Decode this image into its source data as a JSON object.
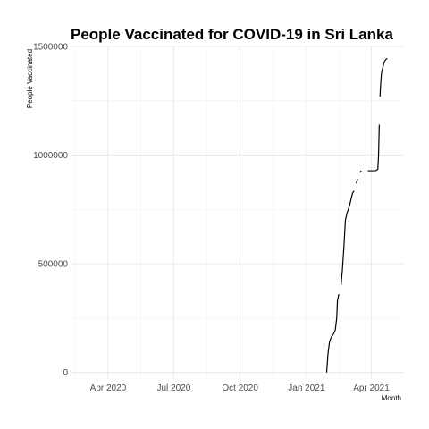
{
  "chart_data": {
    "type": "line",
    "title": "People Vaccinated for COVID-19 in Sri Lanka",
    "xlabel": "Month",
    "ylabel": "People Vaccinated",
    "xlim": [
      "2020-02-09",
      "2021-05-15"
    ],
    "ylim": [
      -30000,
      1500000
    ],
    "x_ticks": [
      {
        "date": "2020-04-01",
        "label": "Apr 2020"
      },
      {
        "date": "2020-07-01",
        "label": "Jul 2020"
      },
      {
        "date": "2020-10-01",
        "label": "Oct 2020"
      },
      {
        "date": "2021-01-01",
        "label": "Jan 2021"
      },
      {
        "date": "2021-04-01",
        "label": "Apr 2021"
      }
    ],
    "y_ticks": [
      {
        "value": 0,
        "label": "0"
      },
      {
        "value": 500000,
        "label": "500000"
      },
      {
        "value": 1000000,
        "label": "1000000"
      },
      {
        "value": 1500000,
        "label": "1500000"
      }
    ],
    "grid": true,
    "legend": "none",
    "line_color": "#000000",
    "series": [
      {
        "segments": [
          [
            {
              "x": "2021-01-29",
              "y": 0
            },
            {
              "x": "2021-01-31",
              "y": 90000
            },
            {
              "x": "2021-02-02",
              "y": 140000
            },
            {
              "x": "2021-02-04",
              "y": 160000
            },
            {
              "x": "2021-02-06",
              "y": 170000
            },
            {
              "x": "2021-02-08",
              "y": 180000
            },
            {
              "x": "2021-02-10",
              "y": 195000
            },
            {
              "x": "2021-02-12",
              "y": 250000
            },
            {
              "x": "2021-02-13",
              "y": 330000
            },
            {
              "x": "2021-02-15",
              "y": 360000
            }
          ],
          [
            {
              "x": "2021-02-18",
              "y": 400000
            },
            {
              "x": "2021-02-20",
              "y": 480000
            },
            {
              "x": "2021-02-22",
              "y": 580000
            },
            {
              "x": "2021-02-24",
              "y": 700000
            },
            {
              "x": "2021-02-26",
              "y": 730000
            },
            {
              "x": "2021-02-28",
              "y": 750000
            },
            {
              "x": "2021-03-02",
              "y": 770000
            },
            {
              "x": "2021-03-04",
              "y": 800000
            },
            {
              "x": "2021-03-06",
              "y": 825000
            },
            {
              "x": "2021-03-08",
              "y": 835000
            }
          ],
          [
            {
              "x": "2021-03-11",
              "y": 870000
            },
            {
              "x": "2021-03-13",
              "y": 890000
            }
          ],
          [
            {
              "x": "2021-03-16",
              "y": 920000
            },
            {
              "x": "2021-03-18",
              "y": 928000
            }
          ],
          [
            {
              "x": "2021-03-27",
              "y": 928000
            },
            {
              "x": "2021-04-03",
              "y": 928000
            },
            {
              "x": "2021-04-07",
              "y": 928000
            },
            {
              "x": "2021-04-10",
              "y": 935000
            },
            {
              "x": "2021-04-11",
              "y": 1000000
            },
            {
              "x": "2021-04-12",
              "y": 1140000
            }
          ],
          [
            {
              "x": "2021-04-13",
              "y": 1270000
            },
            {
              "x": "2021-04-14",
              "y": 1330000
            },
            {
              "x": "2021-04-15",
              "y": 1375000
            },
            {
              "x": "2021-04-17",
              "y": 1405000
            },
            {
              "x": "2021-04-19",
              "y": 1430000
            },
            {
              "x": "2021-04-21",
              "y": 1440000
            },
            {
              "x": "2021-04-23",
              "y": 1445000
            }
          ]
        ]
      }
    ]
  }
}
